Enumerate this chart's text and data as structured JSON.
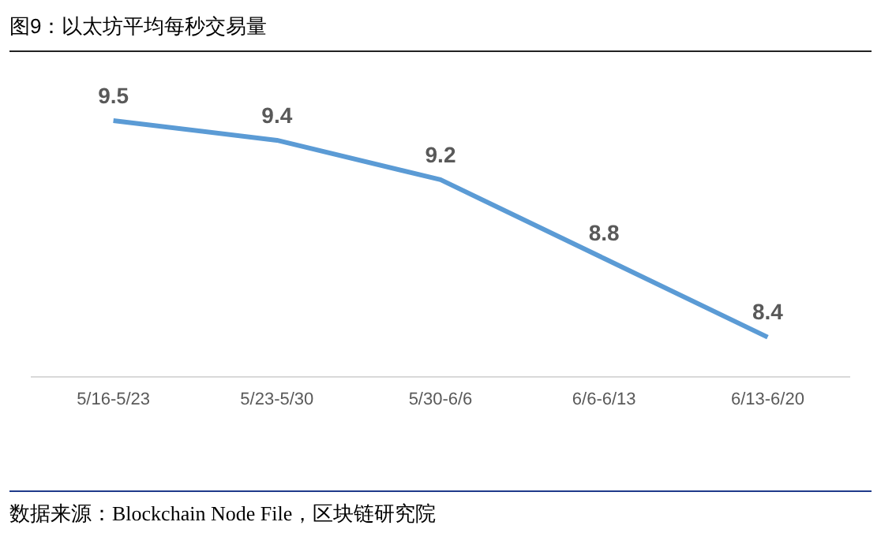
{
  "chart_data": {
    "type": "line",
    "title": "图9：以太坊平均每秒交易量",
    "categories": [
      "5/16-5/23",
      "5/23-5/30",
      "5/30-6/6",
      "6/6-6/13",
      "6/13-6/20"
    ],
    "series": [
      {
        "color": "#5b9bd5",
        "values": [
          9.5,
          9.4,
          9.2,
          8.8,
          8.4
        ]
      }
    ],
    "data_labels": true,
    "grid": false,
    "legend": false,
    "marker": "none",
    "line_style": "solid",
    "annotations": [
      "数据来源：Blockchain Node File，区块链研究院"
    ]
  }
}
